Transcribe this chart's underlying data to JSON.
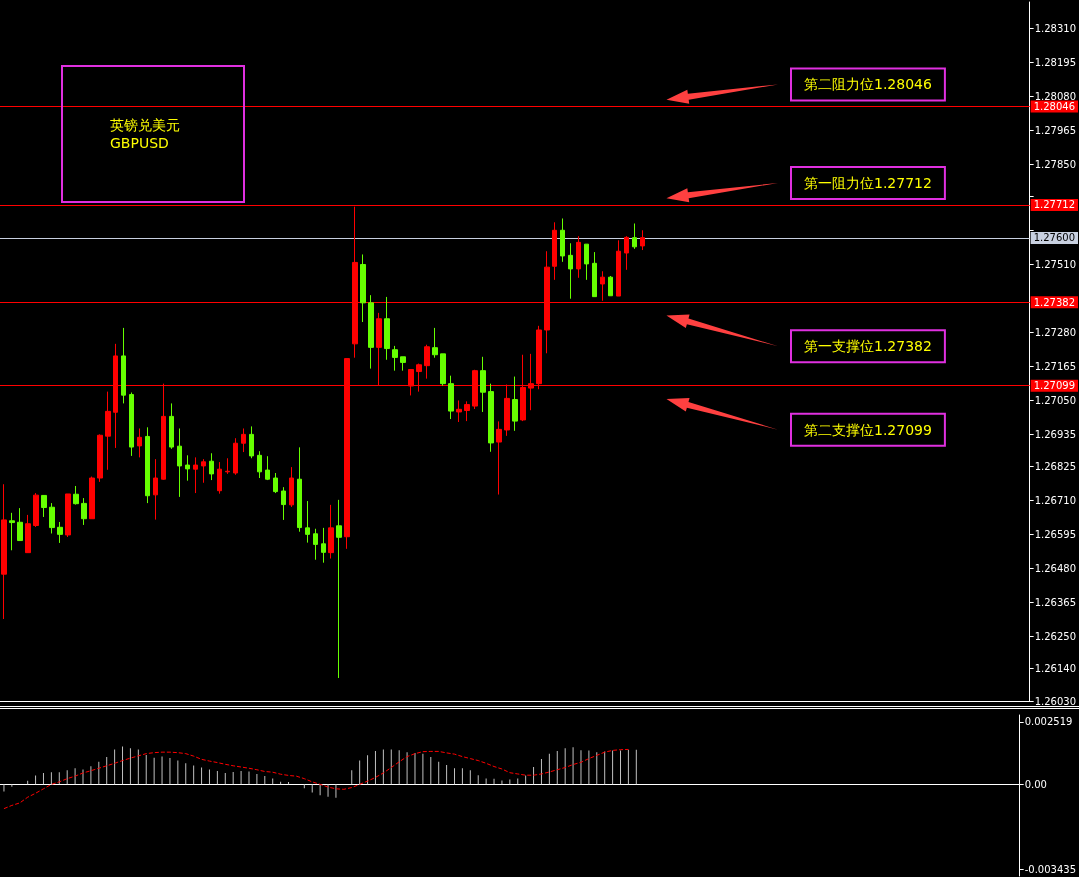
{
  "chart_data": [
    {
      "type": "candlestick",
      "title": "英镑兑美元",
      "subtitle": "GBPUSD",
      "tick_labels": "y",
      "categories": [
        null,
        null,
        null,
        null,
        null,
        null,
        null,
        null,
        null,
        null,
        null,
        null,
        null,
        null,
        null,
        null,
        null,
        null,
        null,
        null,
        null,
        null,
        null,
        null,
        null,
        null,
        null,
        null,
        null,
        null,
        null,
        null,
        null,
        null,
        null,
        null,
        null,
        null,
        null,
        null,
        null,
        null,
        null,
        null,
        null,
        null,
        null,
        null,
        null,
        null,
        null,
        null,
        null,
        null,
        null,
        null,
        null,
        null,
        null,
        null,
        null,
        null,
        null,
        null,
        null,
        null,
        null,
        null,
        null,
        null,
        null,
        null,
        null,
        null,
        null,
        null,
        null,
        null,
        null,
        null,
        null,
        null,
        null,
        null,
        null,
        null,
        null,
        null,
        null,
        null,
        null,
        null,
        null,
        null,
        null,
        null,
        null,
        null,
        null,
        null,
        null,
        null,
        null,
        null,
        null,
        null,
        null,
        null,
        null,
        null,
        null,
        null,
        null,
        null,
        null,
        null,
        null,
        null,
        null,
        null,
        null,
        null,
        null,
        null,
        null,
        null,
        null,
        null,
        null
      ],
      "colors": [
        "#ff0000",
        "#66ff00",
        "#66ff00",
        "#ff0000",
        "#ff0000",
        "#66ff00",
        "#66ff00",
        "#66ff00",
        "#ff0000",
        "#66ff00",
        "#66ff00",
        "#ff0000",
        "#ff0000",
        "#ff0000",
        "#ff0000",
        "#66ff00",
        "#66ff00",
        "#ff0000",
        "#66ff00",
        "#ff0000",
        "#ff0000",
        "#66ff00",
        "#66ff00",
        "#66ff00",
        "#ff0000",
        "#ff0000",
        "#66ff00",
        "#ff0000",
        "#ff0000",
        "#ff0000",
        "#ff0000",
        "#66ff00",
        "#66ff00",
        "#66ff00",
        "#66ff00",
        "#66ff00",
        "#ff0000",
        "#66ff00",
        "#66ff00",
        "#66ff00",
        "#66ff00",
        "#ff0000",
        "#66ff00",
        "#ff0000",
        "#ff0000",
        "#66ff00",
        "#66ff00",
        "#ff0000",
        "#66ff00",
        "#66ff00",
        "#66ff00",
        "#ff0000",
        "#ff0000",
        "#ff0000",
        "#66ff00",
        "#66ff00",
        "#66ff00",
        "#ff0000",
        "#ff0000",
        "#ff0000",
        "#66ff00",
        "#66ff00",
        "#ff0000",
        "#ff0000",
        "#66ff00",
        "#ff0000",
        "#ff0000",
        "#ff0000",
        "#ff0000",
        "#ff0000",
        "#66ff00",
        "#66ff00",
        "#ff0000",
        "#66ff00",
        "#66ff00",
        "#ff0000",
        "#66ff00",
        "#ff0000",
        "#ff0000",
        "#66ff00",
        "#ff0000",
        null,
        null,
        null,
        null,
        null,
        null,
        null,
        null,
        null,
        null,
        null,
        null,
        null,
        null,
        null,
        null,
        null,
        null,
        null,
        null,
        null,
        null,
        null,
        null,
        null,
        null,
        null,
        null,
        null,
        null,
        null,
        null,
        null,
        null,
        null,
        null,
        null,
        null,
        null,
        null,
        null,
        null,
        null,
        null,
        null,
        null,
        null,
        null
      ],
      "ohlc": [
        [
          1.2646,
          1.26765,
          1.26308,
          1.26644
        ],
        [
          1.26641,
          1.26668,
          1.26541,
          1.26635
        ],
        [
          1.26636,
          1.26684,
          1.26574,
          1.26574
        ],
        [
          1.26533,
          1.26661,
          1.26533,
          1.26631
        ],
        [
          1.26625,
          1.26735,
          1.2662,
          1.26728
        ],
        [
          1.26727,
          1.26728,
          1.26654,
          1.26686
        ],
        [
          1.26687,
          1.26701,
          1.26598,
          1.26618
        ],
        [
          1.26619,
          1.26637,
          1.26566,
          1.26595
        ],
        [
          1.26593,
          1.26732,
          1.26586,
          1.26732
        ],
        [
          1.26731,
          1.26759,
          1.26696,
          1.26699
        ],
        [
          1.267,
          1.26718,
          1.26627,
          1.26648
        ],
        [
          1.26648,
          1.26791,
          1.26648,
          1.26786
        ],
        [
          1.26786,
          1.26934,
          1.26773,
          1.26931
        ],
        [
          1.26928,
          1.27079,
          1.26814,
          1.27012
        ],
        [
          1.27009,
          1.27241,
          1.26888,
          1.272
        ],
        [
          1.272,
          1.27295,
          1.27039,
          1.27067
        ],
        [
          1.27069,
          1.27076,
          1.26861,
          1.26891
        ],
        [
          1.26895,
          1.26954,
          1.26856,
          1.26924
        ],
        [
          1.26927,
          1.26958,
          1.26701,
          1.26726
        ],
        [
          1.26729,
          1.2685,
          1.26645,
          1.26786
        ],
        [
          1.26782,
          1.27106,
          1.2678,
          1.26995
        ],
        [
          1.26995,
          1.27039,
          1.26885,
          1.26891
        ],
        [
          1.26894,
          1.26954,
          1.26722,
          1.26827
        ],
        [
          1.2683,
          1.26863,
          1.26777,
          1.26817
        ],
        [
          1.26816,
          1.26856,
          1.26735,
          1.2683
        ],
        [
          1.26827,
          1.2685,
          1.2677,
          1.26841
        ],
        [
          1.26843,
          1.2687,
          1.26779,
          1.268
        ],
        [
          1.26743,
          1.2684,
          1.26733,
          1.26816
        ],
        [
          1.26807,
          1.26853,
          1.268,
          1.26809
        ],
        [
          1.26803,
          1.26921,
          1.26797,
          1.26904
        ],
        [
          1.26904,
          1.26954,
          1.26874,
          1.26934
        ],
        [
          1.26934,
          1.26961,
          1.26853,
          1.26861
        ],
        [
          1.26863,
          1.26877,
          1.26786,
          1.26807
        ],
        [
          1.26813,
          1.2686,
          1.26779,
          1.26782
        ],
        [
          1.26786,
          1.26803,
          1.26735,
          1.2674
        ],
        [
          1.26742,
          1.26755,
          1.26644,
          1.26696
        ],
        [
          1.26695,
          1.26823,
          1.26688,
          1.26786
        ],
        [
          1.26782,
          1.2689,
          1.26604,
          1.26618
        ],
        [
          1.26617,
          1.26708,
          1.26567,
          1.26595
        ],
        [
          1.26597,
          1.26614,
          1.26509,
          1.26561
        ],
        [
          1.26563,
          1.26617,
          1.26499,
          1.26534
        ],
        [
          1.26533,
          1.26695,
          1.26513,
          1.26617
        ],
        [
          1.26624,
          1.26712,
          1.26108,
          1.26585
        ],
        [
          1.26587,
          1.27191,
          1.26546,
          1.27191
        ],
        [
          1.27241,
          1.27706,
          1.27194,
          1.27517
        ],
        [
          1.2751,
          1.27544,
          1.27315,
          1.2738
        ],
        [
          1.2738,
          1.27406,
          1.27157,
          1.27229
        ],
        [
          1.27229,
          1.27346,
          1.27098,
          1.27326
        ],
        [
          1.27326,
          1.274,
          1.27187,
          1.27225
        ],
        [
          1.27221,
          1.27234,
          1.2715,
          1.27195
        ],
        [
          1.27197,
          1.27197,
          1.2715,
          1.27178
        ],
        [
          1.27098,
          1.27154,
          1.27066,
          1.27154
        ],
        [
          1.27147,
          1.27174,
          1.27079,
          1.2717
        ],
        [
          1.27167,
          1.27238,
          1.27123,
          1.27231
        ],
        [
          1.27228,
          1.27295,
          1.27194,
          1.27204
        ],
        [
          1.27207,
          1.27207,
          1.27099,
          1.27106
        ],
        [
          1.27106,
          1.27133,
          1.26986,
          1.27013
        ],
        [
          1.2701,
          1.27049,
          1.26976,
          1.27019
        ],
        [
          1.27015,
          1.27046,
          1.26979,
          1.27035
        ],
        [
          1.2703,
          1.27153,
          1.2702,
          1.2715
        ],
        [
          1.2715,
          1.27197,
          1.2701,
          1.27077
        ],
        [
          1.27079,
          1.27106,
          1.26875,
          1.26905
        ],
        [
          1.26908,
          1.26978,
          1.2673,
          1.26951
        ],
        [
          1.26949,
          1.27103,
          1.26929,
          1.27056
        ],
        [
          1.27052,
          1.2713,
          1.26946,
          1.26979
        ],
        [
          1.26983,
          1.27204,
          1.26979,
          1.27093
        ],
        [
          1.27091,
          1.27207,
          1.27016,
          1.27106
        ],
        [
          1.27106,
          1.27302,
          1.27087,
          1.27288
        ],
        [
          1.27288,
          1.27555,
          1.27209,
          1.27501
        ],
        [
          1.27504,
          1.27653,
          1.27458,
          1.27626
        ],
        [
          1.27626,
          1.27666,
          1.27519,
          1.27539
        ],
        [
          1.27541,
          1.27582,
          1.27394,
          1.27495
        ],
        [
          1.27495,
          1.27606,
          1.27465,
          1.27585
        ],
        [
          1.27579,
          1.27579,
          1.27458,
          1.27512
        ],
        [
          1.27514,
          1.27552,
          1.27401,
          1.27401
        ],
        [
          1.27444,
          1.27487,
          1.27387,
          1.27467
        ],
        [
          1.27467,
          1.27471,
          1.27404,
          1.27404
        ],
        [
          1.27403,
          1.27592,
          1.27403,
          1.27555
        ],
        [
          1.27549,
          1.27606,
          1.27492,
          1.27602
        ],
        [
          1.27601,
          1.27649,
          1.27563,
          1.2757
        ],
        [
          1.27573,
          1.27626,
          1.27559,
          1.27601
        ],
        null,
        null,
        null,
        null,
        null,
        null,
        null,
        null,
        null,
        null,
        null,
        null,
        null,
        null,
        null,
        null,
        null,
        null,
        null,
        null,
        null,
        null,
        null,
        null,
        null,
        null,
        null,
        null,
        null,
        null,
        null,
        null,
        null,
        null,
        null,
        null,
        null,
        null,
        null,
        null,
        null,
        null,
        null,
        null,
        null,
        null,
        null,
        null
      ],
      "ylim": [
        1.2603,
        1.284
      ],
      "yticks": [
        {
          "value": 1.2831,
          "label": "1.28310"
        },
        {
          "value": 1.28195,
          "label": "1.28195"
        },
        {
          "value": 1.2808,
          "label": "1.28080"
        },
        {
          "value": 1.27965,
          "label": "1.27965"
        },
        {
          "value": 1.2785,
          "label": "1.27850"
        },
        {
          "value": 1.2774,
          "label": null
        },
        {
          "value": 1.27625,
          "label": null
        },
        {
          "value": 1.2751,
          "label": "1.27510"
        },
        {
          "value": 1.2728,
          "label": "1.27280"
        },
        {
          "value": 1.27165,
          "label": "1.27165"
        },
        {
          "value": 1.2705,
          "label": "1.27050"
        },
        {
          "value": 1.26935,
          "label": "1.26935"
        },
        {
          "value": 1.26825,
          "label": "1.26825"
        },
        {
          "value": 1.2671,
          "label": "1.26710"
        },
        {
          "value": 1.26595,
          "label": "1.26595"
        },
        {
          "value": 1.2648,
          "label": "1.26480"
        },
        {
          "value": 1.26365,
          "label": "1.26365"
        },
        {
          "value": 1.2625,
          "label": "1.26250"
        },
        {
          "value": 1.2614,
          "label": "1.26140"
        },
        {
          "value": 1.2603,
          "label": "1.26030"
        }
      ],
      "ref_lines": [
        {
          "axis": "y",
          "value": 1.28046,
          "label": "1.28046",
          "color": "#ff0000"
        },
        {
          "axis": "y",
          "value": 1.27712,
          "label": "1.27712",
          "color": "#ff0000"
        },
        {
          "axis": "y",
          "value": 1.276,
          "label": "1.27600",
          "color": "#c8d0e0"
        },
        {
          "axis": "y",
          "value": 1.27382,
          "label": "1.27382",
          "color": "#ff0000"
        },
        {
          "axis": "y",
          "value": 1.27099,
          "label": "1.27099",
          "color": "#ff0000"
        }
      ],
      "annotations": [
        "第二阻力位1.28046",
        "第一阻力位1.27712",
        "第一支撑位1.27382",
        "第二支撑位1.27099"
      ]
    },
    {
      "type": "bar",
      "tick_labels": "y",
      "categories": [
        null,
        null,
        null,
        null,
        null,
        null,
        null,
        null,
        null,
        null,
        null,
        null,
        null,
        null,
        null,
        null,
        null,
        null,
        null,
        null,
        null,
        null,
        null,
        null,
        null,
        null,
        null,
        null,
        null,
        null,
        null,
        null,
        null,
        null,
        null,
        null,
        null,
        null,
        null,
        null,
        null,
        null,
        null,
        null,
        null,
        null,
        null,
        null,
        null,
        null,
        null,
        null,
        null,
        null,
        null,
        null,
        null,
        null,
        null,
        null,
        null,
        null,
        null,
        null,
        null,
        null,
        null,
        null,
        null,
        null,
        null,
        null,
        null,
        null,
        null,
        null,
        null,
        null,
        null,
        null,
        null,
        null,
        null,
        null,
        null,
        null,
        null,
        null,
        null,
        null,
        null,
        null,
        null,
        null,
        null,
        null,
        null,
        null,
        null,
        null,
        null,
        null,
        null,
        null,
        null,
        null,
        null,
        null,
        null,
        null,
        null,
        null,
        null,
        null,
        null,
        null,
        null,
        null,
        null,
        null,
        null,
        null,
        null,
        null,
        null,
        null,
        null,
        null,
        null
      ],
      "series": [
        {
          "color": "#c0c0c0",
          "values": [
            -0.00029,
            -0.0001,
            0,
            0.00015,
            0.00036,
            0.00046,
            0.00049,
            0.00049,
            0.00057,
            0.00065,
            0.0006,
            0.00073,
            0.00091,
            0.0011,
            0.00141,
            0.00153,
            0.00146,
            0.00141,
            0.00119,
            0.00107,
            0.00112,
            0.00106,
            0.00096,
            0.00085,
            0.00076,
            0.00068,
            0.0006,
            0.00054,
            0.00046,
            0.0005,
            0.00054,
            0.00052,
            0.00042,
            0.00034,
            0.00024,
            0.00011,
            0.0001,
            0,
            -0.00016,
            -0.00033,
            -0.00044,
            -0.0005,
            -0.00054,
            0,
            0.00057,
            0.00096,
            0.00117,
            0.00135,
            0.00141,
            0.00141,
            0.00138,
            0.0013,
            0.00127,
            0.00124,
            0.0011,
            0.00091,
            0.00078,
            0.00065,
            0.00065,
            0.00057,
            0.00037,
            0.00024,
            0.00023,
            0.00016,
            0.0002,
            0.00024,
            0.00036,
            0.0007,
            0.00102,
            0.00124,
            0.00135,
            0.00146,
            0.0015,
            0.00138,
            0.00137,
            0.0013,
            0.00133,
            0.00137,
            0.00137,
            0.0014,
            0.0014,
            null,
            null,
            null,
            null,
            null,
            null,
            null,
            null,
            null,
            null,
            null,
            null,
            null,
            null,
            null,
            null,
            null,
            null,
            null,
            null,
            null,
            null,
            null,
            null,
            null,
            null,
            null,
            null,
            null,
            null,
            null,
            null,
            null,
            null,
            null,
            null,
            null,
            null,
            null,
            null,
            null,
            null,
            null,
            null,
            null,
            null,
            null,
            null
          ]
        },
        {
          "type": "line",
          "color": "#ff0000",
          "line_style": "dashed",
          "values": [
            -0.00098,
            -0.00085,
            -0.00075,
            -0.00052,
            -0.00036,
            -0.00018,
            0,
            0.0001,
            0.00023,
            0.00033,
            0.00046,
            0.00055,
            0.00065,
            0.00075,
            0.00085,
            0.00096,
            0.00106,
            0.00115,
            0.00124,
            0.00128,
            0.0013,
            0.0013,
            0.00128,
            0.00124,
            0.00114,
            0.00101,
            0.00094,
            0.00088,
            0.00081,
            0.00075,
            0.0007,
            0.00065,
            0.00059,
            0.00052,
            0.00049,
            0.00041,
            0.00036,
            0.00033,
            0.00023,
            0.0001,
            0,
            -0.00011,
            -0.00018,
            -0.0002,
            -0.00013,
            0,
            0.00013,
            0.00028,
            0.00046,
            0.00068,
            0.00091,
            0.00112,
            0.00124,
            0.00132,
            0.00133,
            0.00133,
            0.00127,
            0.00122,
            0.00112,
            0.00104,
            0.00096,
            0.00085,
            0.00072,
            0.00062,
            0.00047,
            0.00042,
            0.00037,
            0.00037,
            0.00042,
            0.0005,
            0.00059,
            0.00068,
            0.0008,
            0.00089,
            0.00104,
            0.00117,
            0.0013,
            0.00137,
            0.0014,
            0.00141,
            null,
            null,
            null,
            null,
            null,
            null,
            null,
            null,
            null,
            null,
            null,
            null,
            null,
            null,
            null,
            null,
            null,
            null,
            null,
            null,
            null,
            null,
            null,
            null,
            null,
            null,
            null,
            null,
            null,
            null,
            null,
            null,
            null,
            null,
            null,
            null,
            null,
            null,
            null,
            null,
            null,
            null,
            null,
            null,
            null,
            null,
            null,
            null,
            null
          ]
        }
      ],
      "ylim": [
        -0.0037,
        0.0028
      ],
      "yticks": [
        0.002519,
        {
          "value": 0,
          "label": "0.00"
        },
        -0.003435
      ]
    }
  ]
}
